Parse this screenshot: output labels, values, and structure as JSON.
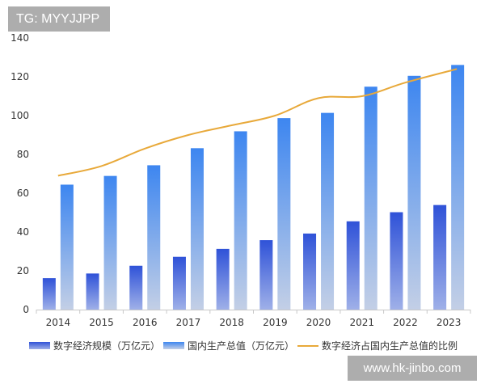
{
  "watermarks": {
    "top_left": "TG: MYYJJPP",
    "bottom_right": "www.hk-jinbo.com"
  },
  "chart_data": {
    "type": "bar",
    "categories": [
      "2014",
      "2015",
      "2016",
      "2017",
      "2018",
      "2019",
      "2020",
      "2021",
      "2022",
      "2023"
    ],
    "series": [
      {
        "name": "数字经济规模（万亿元）",
        "type": "bar",
        "values": [
          16.2,
          18.6,
          22.6,
          27.2,
          31.3,
          35.8,
          39.2,
          45.5,
          50.2,
          53.9
        ]
      },
      {
        "name": "国内生产总值（万亿元）",
        "type": "bar",
        "values": [
          64.4,
          68.9,
          74.4,
          83.2,
          91.9,
          98.7,
          101.4,
          114.9,
          120.5,
          126.1
        ]
      },
      {
        "name": "数字经济占国内生产总值的比例",
        "type": "line",
        "values": [
          69,
          74,
          83,
          90,
          95,
          100,
          109,
          110,
          117,
          124
        ]
      }
    ],
    "ylim": [
      0,
      140
    ],
    "yticks": [
      "0",
      "20",
      "40",
      "60",
      "80",
      "100",
      "120",
      "140"
    ],
    "grid": false,
    "legend": "bottom",
    "colors": {
      "bar1_top": "#2f52d8",
      "bar1_bottom": "#9fb0e8",
      "bar2_top": "#3d86f0",
      "bar2_bottom": "#c3cfe6",
      "line": "#e8a93a",
      "axis": "#c8c8c8",
      "text": "#333333"
    }
  }
}
